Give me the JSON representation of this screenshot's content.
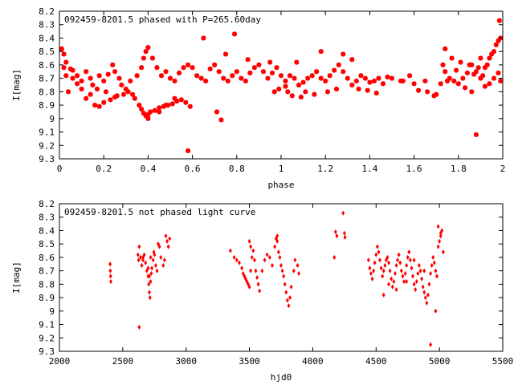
{
  "colors": {
    "points": "#ff0000",
    "axes": "#000000",
    "background": "#ffffff"
  },
  "chart_data": [
    {
      "type": "scatter",
      "title": "092459-8201.5 phased with P=265.60day",
      "xlabel": "phase",
      "ylabel": "I[mag]",
      "xlim": [
        0,
        2
      ],
      "ylim": [
        9.3,
        8.2
      ],
      "y_inverted": true,
      "grid": false,
      "marker": "star",
      "x_ticks": [
        "0",
        "0.2",
        "0.4",
        "0.6",
        "0.8",
        "1",
        "1.2",
        "1.4",
        "1.6",
        "1.8",
        "2"
      ],
      "y_ticks": [
        "8.2",
        "8.3",
        "8.4",
        "8.5",
        "8.6",
        "8.7",
        "8.8",
        "8.9",
        "9",
        "9.1",
        "9.2",
        "9.3"
      ],
      "points": [
        [
          0.01,
          8.48
        ],
        [
          0.02,
          8.52
        ],
        [
          0.03,
          8.58
        ],
        [
          0.05,
          8.63
        ],
        [
          0.06,
          8.7
        ],
        [
          0.04,
          8.8
        ],
        [
          0.08,
          8.68
        ],
        [
          0.1,
          8.72
        ],
        [
          0.12,
          8.65
        ],
        [
          0.14,
          8.7
        ],
        [
          0.15,
          8.75
        ],
        [
          0.17,
          8.78
        ],
        [
          0.18,
          8.68
        ],
        [
          0.2,
          8.72
        ],
        [
          0.22,
          8.67
        ],
        [
          0.24,
          8.6
        ],
        [
          0.25,
          8.65
        ],
        [
          0.27,
          8.7
        ],
        [
          0.28,
          8.75
        ],
        [
          0.3,
          8.78
        ],
        [
          0.16,
          8.9
        ],
        [
          0.18,
          8.91
        ],
        [
          0.2,
          8.88
        ],
        [
          0.23,
          8.86
        ],
        [
          0.26,
          8.83
        ],
        [
          0.29,
          8.82
        ],
        [
          0.31,
          8.8
        ],
        [
          0.33,
          8.82
        ],
        [
          0.34,
          8.85
        ],
        [
          0.36,
          8.9
        ],
        [
          0.37,
          8.93
        ],
        [
          0.38,
          8.96
        ],
        [
          0.39,
          8.98
        ],
        [
          0.4,
          8.97
        ],
        [
          0.41,
          8.95
        ],
        [
          0.43,
          8.94
        ],
        [
          0.45,
          8.92
        ],
        [
          0.47,
          8.91
        ],
        [
          0.49,
          8.9
        ],
        [
          0.51,
          8.89
        ],
        [
          0.53,
          8.87
        ],
        [
          0.55,
          8.86
        ],
        [
          0.57,
          8.88
        ],
        [
          0.59,
          8.91
        ],
        [
          0.35,
          8.68
        ],
        [
          0.37,
          8.62
        ],
        [
          0.38,
          8.55
        ],
        [
          0.39,
          8.5
        ],
        [
          0.4,
          8.47
        ],
        [
          0.42,
          8.55
        ],
        [
          0.44,
          8.62
        ],
        [
          0.46,
          8.68
        ],
        [
          0.48,
          8.65
        ],
        [
          0.5,
          8.7
        ],
        [
          0.52,
          8.72
        ],
        [
          0.54,
          8.66
        ],
        [
          0.56,
          8.62
        ],
        [
          0.58,
          8.6
        ],
        [
          0.6,
          8.62
        ],
        [
          0.62,
          8.68
        ],
        [
          0.64,
          8.7
        ],
        [
          0.66,
          8.72
        ],
        [
          0.68,
          8.63
        ],
        [
          0.7,
          8.6
        ],
        [
          0.72,
          8.65
        ],
        [
          0.74,
          8.7
        ],
        [
          0.76,
          8.72
        ],
        [
          0.78,
          8.68
        ],
        [
          0.8,
          8.65
        ],
        [
          0.82,
          8.7
        ],
        [
          0.84,
          8.72
        ],
        [
          0.86,
          8.66
        ],
        [
          0.88,
          8.62
        ],
        [
          0.9,
          8.6
        ],
        [
          0.92,
          8.65
        ],
        [
          0.94,
          8.7
        ],
        [
          0.96,
          8.66
        ],
        [
          0.98,
          8.62
        ],
        [
          1.0,
          8.68
        ],
        [
          1.02,
          8.72
        ],
        [
          1.04,
          8.68
        ],
        [
          1.06,
          8.7
        ],
        [
          1.08,
          8.75
        ],
        [
          1.1,
          8.73
        ],
        [
          1.12,
          8.7
        ],
        [
          1.14,
          8.68
        ],
        [
          1.16,
          8.65
        ],
        [
          1.18,
          8.7
        ],
        [
          1.2,
          8.72
        ],
        [
          1.22,
          8.68
        ],
        [
          1.24,
          8.64
        ],
        [
          1.26,
          8.6
        ],
        [
          1.28,
          8.65
        ],
        [
          1.3,
          8.7
        ],
        [
          1.32,
          8.75
        ],
        [
          1.34,
          8.72
        ],
        [
          1.36,
          8.68
        ],
        [
          1.38,
          8.7
        ],
        [
          1.4,
          8.73
        ],
        [
          1.42,
          8.72
        ],
        [
          1.44,
          8.7
        ],
        [
          1.46,
          8.74
        ],
        [
          1.48,
          8.69
        ],
        [
          1.5,
          8.7
        ],
        [
          1.55,
          8.72
        ],
        [
          1.6,
          8.74
        ],
        [
          1.65,
          8.72
        ],
        [
          1.7,
          8.82
        ],
        [
          1.72,
          8.74
        ],
        [
          1.74,
          8.65
        ],
        [
          1.76,
          8.7
        ],
        [
          1.78,
          8.72
        ],
        [
          1.8,
          8.74
        ],
        [
          1.82,
          8.7
        ],
        [
          1.84,
          8.66
        ],
        [
          1.86,
          8.6
        ],
        [
          1.88,
          8.65
        ],
        [
          1.9,
          8.7
        ],
        [
          1.92,
          8.62
        ],
        [
          1.94,
          8.55
        ],
        [
          1.95,
          8.52
        ],
        [
          1.96,
          8.5
        ],
        [
          1.97,
          8.45
        ],
        [
          1.98,
          8.42
        ],
        [
          1.99,
          8.4
        ],
        [
          1.985,
          8.27
        ],
        [
          1.93,
          8.6
        ],
        [
          1.91,
          8.68
        ],
        [
          1.89,
          8.62
        ],
        [
          1.87,
          8.67
        ],
        [
          0.58,
          9.24
        ],
        [
          1.88,
          9.12
        ],
        [
          0.73,
          9.01
        ],
        [
          0.79,
          8.37
        ],
        [
          0.65,
          8.4
        ],
        [
          0.71,
          8.95
        ],
        [
          0.4,
          9.0
        ],
        [
          0.45,
          8.95
        ],
        [
          0.48,
          8.9
        ],
        [
          0.52,
          8.85
        ],
        [
          1.28,
          8.52
        ],
        [
          1.32,
          8.56
        ],
        [
          1.18,
          8.5
        ],
        [
          1.07,
          8.58
        ],
        [
          0.95,
          8.58
        ],
        [
          0.85,
          8.56
        ],
        [
          0.75,
          8.52
        ],
        [
          1.62,
          8.79
        ],
        [
          1.66,
          8.8
        ],
        [
          1.74,
          8.48
        ],
        [
          0.12,
          8.85
        ],
        [
          0.14,
          8.82
        ],
        [
          0.1,
          8.78
        ],
        [
          0.08,
          8.74
        ],
        [
          0.06,
          8.64
        ],
        [
          0.03,
          8.68
        ],
        [
          0.02,
          8.62
        ],
        [
          0.21,
          8.8
        ],
        [
          0.25,
          8.84
        ],
        [
          0.32,
          8.72
        ],
        [
          1.03,
          8.8
        ],
        [
          1.05,
          8.83
        ],
        [
          1.09,
          8.84
        ],
        [
          1.11,
          8.8
        ],
        [
          1.15,
          8.82
        ],
        [
          1.21,
          8.8
        ],
        [
          1.25,
          8.78
        ],
        [
          1.35,
          8.78
        ],
        [
          1.39,
          8.79
        ],
        [
          1.43,
          8.81
        ],
        [
          1.02,
          8.76
        ],
        [
          0.99,
          8.78
        ],
        [
          0.97,
          8.8
        ],
        [
          1.54,
          8.72
        ],
        [
          1.58,
          8.68
        ],
        [
          1.69,
          8.83
        ],
        [
          1.75,
          8.72
        ],
        [
          1.79,
          8.64
        ],
        [
          1.83,
          8.77
        ],
        [
          1.86,
          8.8
        ],
        [
          1.94,
          8.74
        ],
        [
          1.96,
          8.7
        ],
        [
          1.98,
          8.66
        ],
        [
          1.99,
          8.72
        ],
        [
          1.92,
          8.76
        ],
        [
          1.9,
          8.55
        ],
        [
          1.85,
          8.6
        ],
        [
          1.81,
          8.58
        ],
        [
          1.77,
          8.55
        ],
        [
          1.73,
          8.6
        ]
      ]
    },
    {
      "type": "scatter",
      "title": "092459-8201.5 not phased light curve",
      "xlabel": "hjd0",
      "ylabel": "I[mag]",
      "xlim": [
        2000,
        5500
      ],
      "ylim": [
        9.3,
        8.2
      ],
      "y_inverted": true,
      "grid": false,
      "marker": "diamond",
      "x_ticks": [
        "2000",
        "2500",
        "3000",
        "3500",
        "4000",
        "4500",
        "5000",
        "5500"
      ],
      "y_ticks": [
        "8.2",
        "8.3",
        "8.4",
        "8.5",
        "8.6",
        "8.7",
        "8.8",
        "8.9",
        "9",
        "9.1",
        "9.2",
        "9.3"
      ],
      "points": [
        [
          2400,
          8.65
        ],
        [
          2402,
          8.7
        ],
        [
          2404,
          8.74
        ],
        [
          2406,
          8.78
        ],
        [
          2620,
          8.58
        ],
        [
          2625,
          8.62
        ],
        [
          2630,
          8.52
        ],
        [
          2640,
          8.6
        ],
        [
          2650,
          8.66
        ],
        [
          2660,
          8.62
        ],
        [
          2670,
          8.58
        ],
        [
          2680,
          8.64
        ],
        [
          2690,
          8.7
        ],
        [
          2700,
          8.74
        ],
        [
          2705,
          8.8
        ],
        [
          2710,
          8.86
        ],
        [
          2715,
          8.9
        ],
        [
          2720,
          8.78
        ],
        [
          2725,
          8.72
        ],
        [
          2730,
          8.68
        ],
        [
          2740,
          8.62
        ],
        [
          2745,
          8.56
        ],
        [
          2750,
          8.58
        ],
        [
          2760,
          8.66
        ],
        [
          2770,
          8.7
        ],
        [
          2780,
          8.5
        ],
        [
          2790,
          8.52
        ],
        [
          2800,
          8.6
        ],
        [
          2820,
          8.66
        ],
        [
          2830,
          8.62
        ],
        [
          2840,
          8.44
        ],
        [
          2850,
          8.48
        ],
        [
          2860,
          8.52
        ],
        [
          2870,
          8.46
        ],
        [
          2630,
          9.12
        ],
        [
          2660,
          8.6
        ],
        [
          2700,
          8.68
        ],
        [
          2710,
          8.74
        ],
        [
          2720,
          8.6
        ],
        [
          3350,
          8.55
        ],
        [
          3380,
          8.6
        ],
        [
          3400,
          8.62
        ],
        [
          3420,
          8.64
        ],
        [
          3440,
          8.68
        ],
        [
          3450,
          8.72
        ],
        [
          3460,
          8.74
        ],
        [
          3470,
          8.76
        ],
        [
          3480,
          8.78
        ],
        [
          3490,
          8.8
        ],
        [
          3500,
          8.82
        ],
        [
          3510,
          8.7
        ],
        [
          3520,
          8.6
        ],
        [
          3530,
          8.55
        ],
        [
          3540,
          8.62
        ],
        [
          3550,
          8.7
        ],
        [
          3560,
          8.75
        ],
        [
          3570,
          8.8
        ],
        [
          3580,
          8.85
        ],
        [
          3600,
          8.7
        ],
        [
          3620,
          8.62
        ],
        [
          3640,
          8.58
        ],
        [
          3660,
          8.6
        ],
        [
          3680,
          8.66
        ],
        [
          3700,
          8.52
        ],
        [
          3710,
          8.46
        ],
        [
          3720,
          8.48
        ],
        [
          3730,
          8.56
        ],
        [
          3740,
          8.6
        ],
        [
          3750,
          8.66
        ],
        [
          3760,
          8.7
        ],
        [
          3770,
          8.74
        ],
        [
          3780,
          8.8
        ],
        [
          3790,
          8.86
        ],
        [
          3800,
          8.92
        ],
        [
          3810,
          8.96
        ],
        [
          3820,
          8.9
        ],
        [
          3830,
          8.82
        ],
        [
          3850,
          8.7
        ],
        [
          3860,
          8.62
        ],
        [
          3880,
          8.66
        ],
        [
          3890,
          8.72
        ],
        [
          3500,
          8.48
        ],
        [
          3510,
          8.52
        ],
        [
          3720,
          8.44
        ],
        [
          4170,
          8.6
        ],
        [
          4180,
          8.41
        ],
        [
          4190,
          8.44
        ],
        [
          4240,
          8.27
        ],
        [
          4250,
          8.42
        ],
        [
          4255,
          8.45
        ],
        [
          4440,
          8.62
        ],
        [
          4450,
          8.68
        ],
        [
          4460,
          8.72
        ],
        [
          4470,
          8.76
        ],
        [
          4480,
          8.7
        ],
        [
          4490,
          8.64
        ],
        [
          4500,
          8.58
        ],
        [
          4510,
          8.52
        ],
        [
          4520,
          8.56
        ],
        [
          4530,
          8.62
        ],
        [
          4540,
          8.68
        ],
        [
          4550,
          8.74
        ],
        [
          4560,
          8.7
        ],
        [
          4570,
          8.66
        ],
        [
          4580,
          8.62
        ],
        [
          4590,
          8.6
        ],
        [
          4600,
          8.64
        ],
        [
          4610,
          8.7
        ],
        [
          4620,
          8.76
        ],
        [
          4630,
          8.82
        ],
        [
          4640,
          8.78
        ],
        [
          4650,
          8.72
        ],
        [
          4660,
          8.66
        ],
        [
          4670,
          8.62
        ],
        [
          4680,
          8.58
        ],
        [
          4690,
          8.64
        ],
        [
          4700,
          8.7
        ],
        [
          4710,
          8.74
        ],
        [
          4720,
          8.78
        ],
        [
          4730,
          8.72
        ],
        [
          4740,
          8.66
        ],
        [
          4750,
          8.6
        ],
        [
          4760,
          8.56
        ],
        [
          4770,
          8.62
        ],
        [
          4780,
          8.68
        ],
        [
          4790,
          8.74
        ],
        [
          4800,
          8.8
        ],
        [
          4810,
          8.84
        ],
        [
          4820,
          8.78
        ],
        [
          4830,
          8.72
        ],
        [
          4840,
          8.66
        ],
        [
          4850,
          8.7
        ],
        [
          4860,
          8.76
        ],
        [
          4870,
          8.82
        ],
        [
          4880,
          8.86
        ],
        [
          4890,
          8.9
        ],
        [
          4900,
          8.94
        ],
        [
          4910,
          8.88
        ],
        [
          4920,
          8.8
        ],
        [
          4930,
          8.72
        ],
        [
          4940,
          8.66
        ],
        [
          4950,
          8.6
        ],
        [
          4960,
          8.64
        ],
        [
          4970,
          8.7
        ],
        [
          4980,
          8.74
        ],
        [
          4990,
          8.52
        ],
        [
          5000,
          8.48
        ],
        [
          5010,
          8.44
        ],
        [
          5020,
          8.4
        ],
        [
          5030,
          8.56
        ],
        [
          4930,
          9.25
        ],
        [
          4970,
          9.0
        ],
        [
          4990,
          8.37
        ],
        [
          5010,
          8.42
        ],
        [
          4560,
          8.88
        ],
        [
          4600,
          8.8
        ],
        [
          4660,
          8.84
        ],
        [
          4740,
          8.78
        ],
        [
          4800,
          8.62
        ],
        [
          4880,
          8.7
        ]
      ]
    }
  ]
}
